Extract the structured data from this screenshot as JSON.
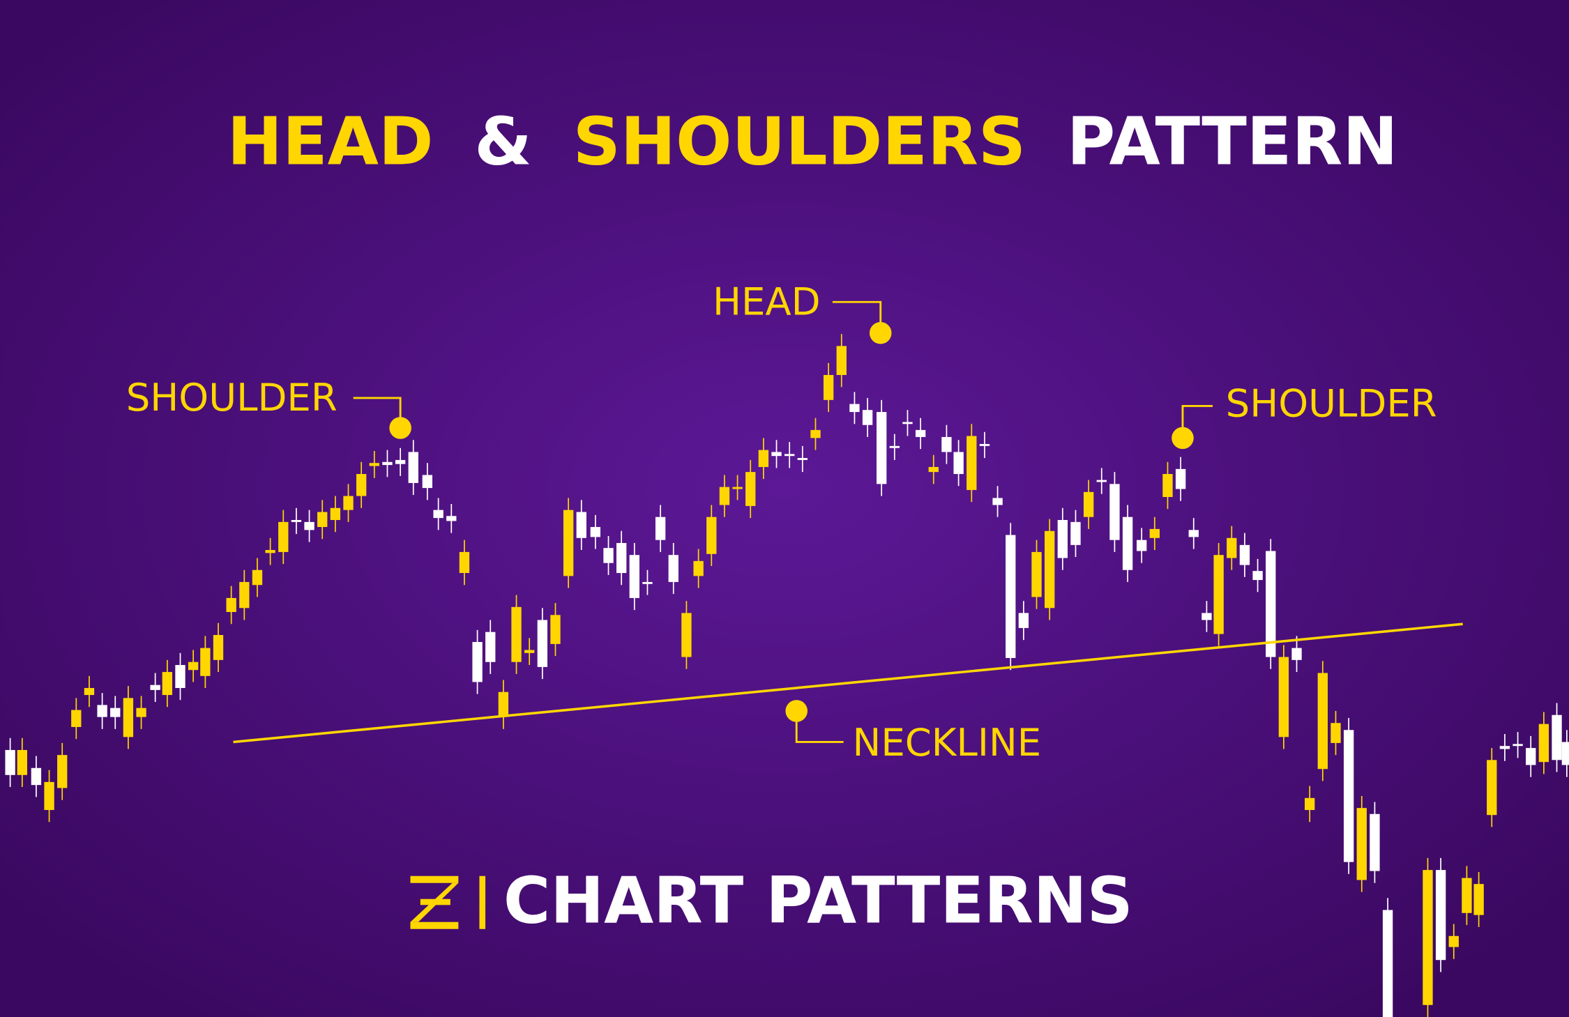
{
  "title": {
    "parts": [
      "HEAD",
      "&",
      "SHOULDERS",
      "PATTERN"
    ]
  },
  "labels": {
    "left_shoulder": "SHOULDER",
    "head": "HEAD",
    "right_shoulder": "SHOULDER",
    "neckline": "NECKLINE"
  },
  "footer": "CHART PATTERNS"
}
